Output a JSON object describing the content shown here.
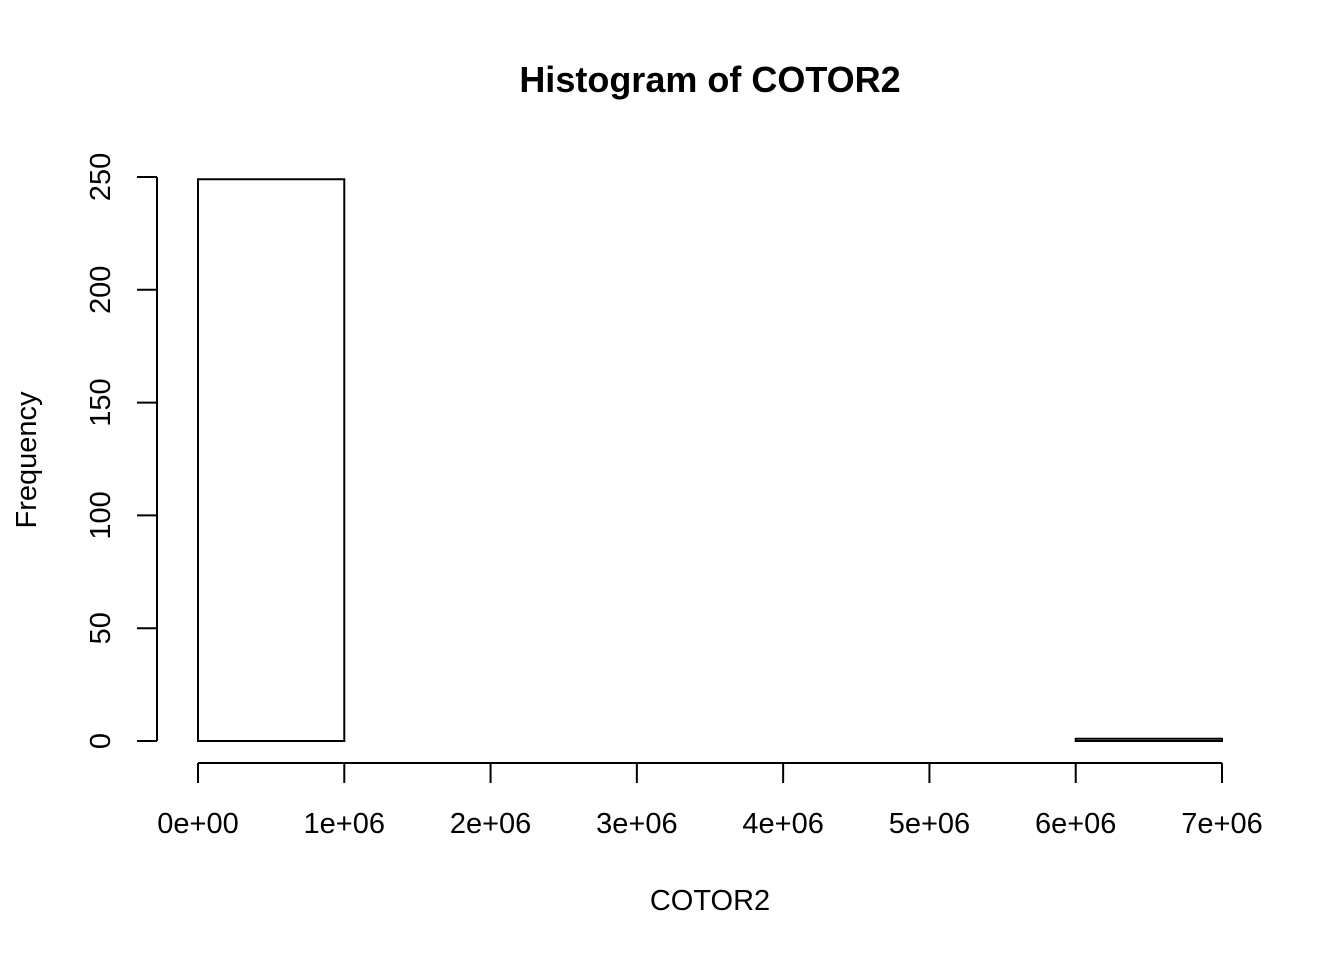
{
  "chart_data": {
    "type": "bar",
    "title": "Histogram of COTOR2",
    "xlabel": "COTOR2",
    "ylabel": "Frequency",
    "bins": [
      {
        "start": 0,
        "end": 1000000,
        "count": 249
      },
      {
        "start": 1000000,
        "end": 2000000,
        "count": 0
      },
      {
        "start": 2000000,
        "end": 3000000,
        "count": 0
      },
      {
        "start": 3000000,
        "end": 4000000,
        "count": 0
      },
      {
        "start": 4000000,
        "end": 5000000,
        "count": 0
      },
      {
        "start": 5000000,
        "end": 6000000,
        "count": 0
      },
      {
        "start": 6000000,
        "end": 7000000,
        "count": 1
      }
    ],
    "xlim": [
      0,
      7000000
    ],
    "ylim": [
      0,
      250
    ],
    "x_ticks": [
      {
        "value": 0,
        "label": "0e+00"
      },
      {
        "value": 1000000,
        "label": "1e+06"
      },
      {
        "value": 2000000,
        "label": "2e+06"
      },
      {
        "value": 3000000,
        "label": "3e+06"
      },
      {
        "value": 4000000,
        "label": "4e+06"
      },
      {
        "value": 5000000,
        "label": "5e+06"
      },
      {
        "value": 6000000,
        "label": "6e+06"
      },
      {
        "value": 7000000,
        "label": "7e+06"
      }
    ],
    "y_ticks": [
      {
        "value": 0,
        "label": "0"
      },
      {
        "value": 50,
        "label": "50"
      },
      {
        "value": 100,
        "label": "100"
      },
      {
        "value": 150,
        "label": "150"
      },
      {
        "value": 200,
        "label": "200"
      },
      {
        "value": 250,
        "label": "250"
      }
    ],
    "grid": false,
    "colors": {
      "bar_fill": "#ffffff",
      "bar_stroke": "#000000",
      "axis": "#000000"
    }
  }
}
